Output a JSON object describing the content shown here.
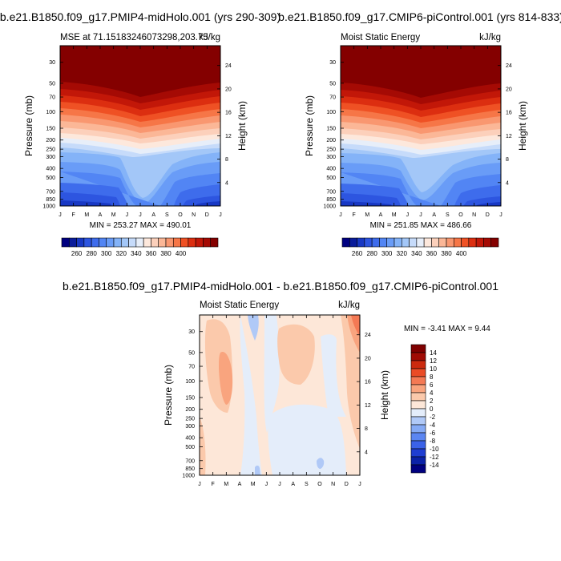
{
  "colors": {
    "top_scale": [
      "#000080",
      "#0a1c9b",
      "#1838c4",
      "#2d55e0",
      "#3e6cec",
      "#5285f4",
      "#699cf7",
      "#84b3f8",
      "#a3c7f8",
      "#c6dbfa",
      "#e7eef9",
      "#fde8dc",
      "#fcd0bb",
      "#fbb797",
      "#f99770",
      "#f67647",
      "#ef5124",
      "#dc2e10",
      "#c21708",
      "#a50a04",
      "#840000"
    ],
    "diff_scale": [
      "#000080",
      "#0b22a8",
      "#1f3ed2",
      "#3b62e8",
      "#5b86f2",
      "#85aaf5",
      "#b0c9f7",
      "#e4edfa",
      "#fde7d8",
      "#fbc9ab",
      "#f9a47e",
      "#f47954",
      "#ea4b26",
      "#cc2a0e",
      "#a00b04",
      "#7f0000"
    ]
  },
  "panels": [
    {
      "main_title": "b.e21.B1850.f09_g17.PMIP4-midHolo.001 (yrs 290-309)",
      "subtitle_left": "MSE at 71.15183246073298,203.75",
      "subtitle_right": "kJ/kg",
      "minmax": "MIN = 253.27 MAX = 490.01"
    },
    {
      "main_title": "b.e21.B1850.f09_g17.CMIP6-piControl.001 (yrs 814-833)",
      "subtitle_left": "Moist Static Energy",
      "subtitle_right": "kJ/kg",
      "minmax": "MIN = 251.85 MAX = 486.66"
    },
    {
      "main_title": "b.e21.B1850.f09_g17.PMIP4-midHolo.001 - b.e21.B1850.f09_g17.CMIP6-piControl.001",
      "subtitle_left": "Moist Static Energy",
      "subtitle_right": "kJ/kg",
      "minmax": "MIN =  -3.41 MAX =   9.44"
    }
  ],
  "chart_data": [
    {
      "type": "heatmap",
      "title": "b.e21.B1850.f09_g17.PMIP4-midHolo.001 (yrs 290-309)",
      "subtitle": "MSE at 71.15183246073298,203.75",
      "units": "kJ/kg",
      "xlabel": "",
      "ylabel": "Pressure (mb)",
      "ylabel_right": "Height (km)",
      "x_ticks": [
        "J",
        "F",
        "M",
        "A",
        "M",
        "J",
        "J",
        "A",
        "S",
        "O",
        "N",
        "D",
        "J"
      ],
      "y_ticks": [
        30,
        50,
        70,
        100,
        150,
        200,
        250,
        300,
        400,
        500,
        700,
        850,
        1000
      ],
      "y_ticks_right": [
        4,
        8,
        12,
        16,
        20,
        24
      ],
      "ylim": [
        1000,
        20
      ],
      "colorbar_levels": [
        260,
        280,
        300,
        320,
        340,
        360,
        380,
        400
      ],
      "min": 253.27,
      "max": 490.01
    },
    {
      "type": "heatmap",
      "title": "b.e21.B1850.f09_g17.CMIP6-piControl.001 (yrs 814-833)",
      "subtitle": "Moist Static Energy",
      "units": "kJ/kg",
      "xlabel": "",
      "ylabel": "Pressure (mb)",
      "ylabel_right": "Height (km)",
      "x_ticks": [
        "J",
        "F",
        "M",
        "A",
        "M",
        "J",
        "J",
        "A",
        "S",
        "O",
        "N",
        "D",
        "J"
      ],
      "y_ticks": [
        30,
        50,
        70,
        100,
        150,
        200,
        250,
        300,
        400,
        500,
        700,
        850,
        1000
      ],
      "y_ticks_right": [
        4,
        8,
        12,
        16,
        20,
        24
      ],
      "ylim": [
        1000,
        20
      ],
      "colorbar_levels": [
        260,
        280,
        300,
        320,
        340,
        360,
        380,
        400
      ],
      "min": 251.85,
      "max": 486.66
    },
    {
      "type": "heatmap",
      "title": "b.e21.B1850.f09_g17.PMIP4-midHolo.001 - b.e21.B1850.f09_g17.CMIP6-piControl.001",
      "subtitle": "Moist Static Energy",
      "units": "kJ/kg",
      "xlabel": "",
      "ylabel": "Pressure (mb)",
      "ylabel_right": "Height (km)",
      "x_ticks": [
        "J",
        "F",
        "M",
        "A",
        "M",
        "J",
        "J",
        "A",
        "S",
        "O",
        "N",
        "D",
        "J"
      ],
      "y_ticks": [
        30,
        50,
        70,
        100,
        150,
        200,
        250,
        300,
        400,
        500,
        700,
        850,
        1000
      ],
      "y_ticks_right": [
        4,
        8,
        12,
        16,
        20,
        24
      ],
      "ylim": [
        1000,
        20
      ],
      "colorbar_levels": [
        14,
        12,
        10,
        8,
        6,
        4,
        2,
        0,
        -2,
        -4,
        -6,
        -8,
        -10,
        -12,
        -14
      ],
      "min": -3.41,
      "max": 9.44
    }
  ]
}
